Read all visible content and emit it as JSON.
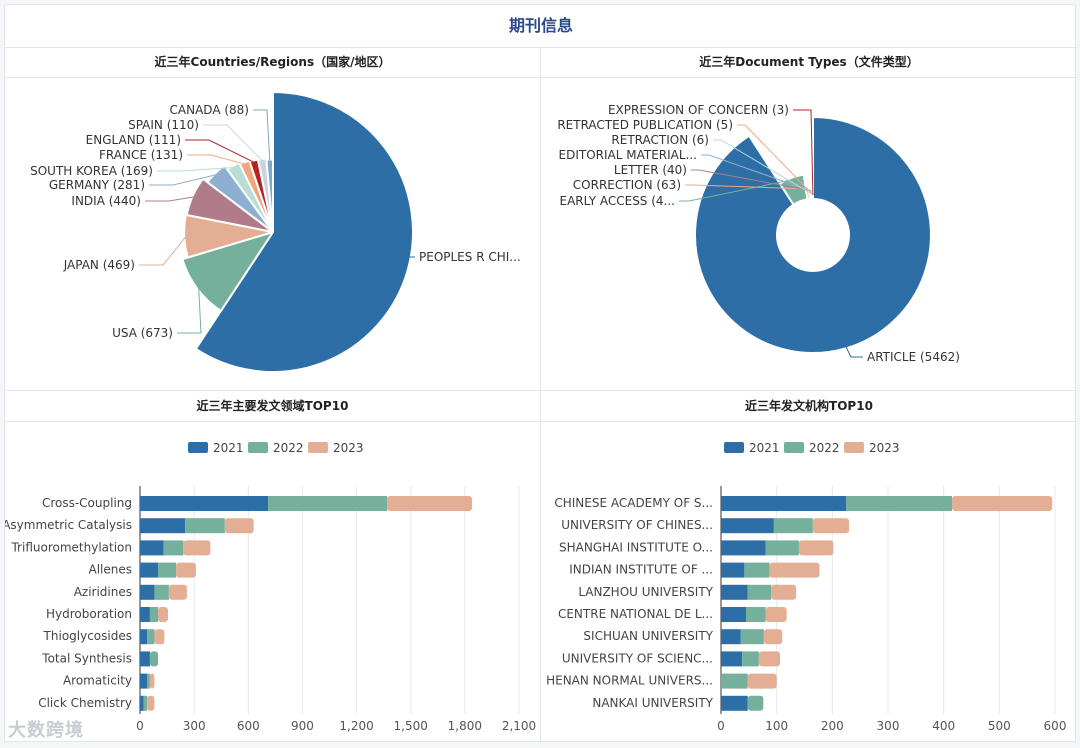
{
  "page_title": "期刊信息",
  "watermark": "大数跨境",
  "panels": {
    "countries": {
      "title": "近三年Countries/Regions（国家/地区）"
    },
    "doctypes": {
      "title": "近三年Document Types（文件类型）"
    },
    "fields": {
      "title": "近三年主要发文领域TOP10"
    },
    "institutions": {
      "title": "近三年发文机构TOP10"
    }
  },
  "chart_data": [
    {
      "type": "pie",
      "variant": "rose",
      "labels": [
        "PEOPLES R CHI...",
        "USA (673)",
        "JAPAN (469)",
        "INDIA (440)",
        "GERMANY (281)",
        "SOUTH KOREA (169)",
        "FRANCE (131)",
        "ENGLAND (111)",
        "SPAIN (110)",
        "CANADA (88)"
      ],
      "values": [
        3600,
        673,
        469,
        440,
        281,
        169,
        131,
        111,
        110,
        88
      ],
      "colors": [
        "#2e6ea6",
        "#75b09c",
        "#e3ae94",
        "#b07c8c",
        "#8eafcf",
        "#b7ddd4",
        "#f0a77f",
        "#b22324",
        "#c9d4df",
        "#7fa9c4"
      ]
    },
    {
      "type": "pie",
      "variant": "rose-donut",
      "labels": [
        "ARTICLE (5462)",
        "EARLY ACCESS (4...",
        "CORRECTION (63)",
        "LETTER (40)",
        "EDITORIAL MATERIAL...",
        "RETRACTION (6)",
        "RETRACTED PUBLICATION (5)",
        "EXPRESSION OF CONCERN (3)"
      ],
      "values": [
        5462,
        400,
        63,
        40,
        30,
        6,
        5,
        3
      ],
      "colors": [
        "#2e6ea6",
        "#75b09c",
        "#e3ae94",
        "#b07c8c",
        "#8eafcf",
        "#b7ddd4",
        "#f0a77f",
        "#b22324"
      ]
    },
    {
      "type": "bar",
      "orientation": "horizontal",
      "stacked": true,
      "categories": [
        "Cross-Coupling",
        "Asymmetric Catalysis",
        "Trifluoromethylation",
        "Allenes",
        "Aziridines",
        "Hydroboration",
        "Thioglycosides",
        "Total Synthesis",
        "Aromaticity",
        "Click Chemistry"
      ],
      "series": [
        {
          "name": "2021",
          "color": "#2e6ea6",
          "values": [
            710,
            250,
            130,
            100,
            80,
            55,
            40,
            55,
            40,
            20
          ]
        },
        {
          "name": "2022",
          "color": "#75b09c",
          "values": [
            660,
            220,
            110,
            100,
            80,
            45,
            40,
            45,
            15,
            20
          ]
        },
        {
          "name": "2023",
          "color": "#e3ae94",
          "values": [
            470,
            160,
            150,
            110,
            100,
            55,
            55,
            0,
            25,
            40
          ]
        }
      ],
      "xlim": [
        0,
        2100
      ],
      "xticks": [
        "0",
        "300",
        "600",
        "900",
        "1,200",
        "1,500",
        "1,800",
        "2,100"
      ],
      "legend": "top"
    },
    {
      "type": "bar",
      "orientation": "horizontal",
      "stacked": true,
      "categories": [
        "CHINESE ACADEMY OF S...",
        "UNIVERSITY OF CHINES...",
        "SHANGHAI INSTITUTE O...",
        "INDIAN INSTITUTE OF ...",
        "LANZHOU UNIVERSITY",
        "CENTRE NATIONAL DE L...",
        "SICHUAN UNIVERSITY",
        "UNIVERSITY OF SCIENC...",
        "HENAN NORMAL UNIVERS...",
        "NANKAI UNIVERSITY"
      ],
      "series": [
        {
          "name": "2021",
          "color": "#2e6ea6",
          "values": [
            225,
            95,
            80,
            42,
            48,
            45,
            35,
            38,
            0,
            48
          ]
        },
        {
          "name": "2022",
          "color": "#75b09c",
          "values": [
            190,
            70,
            60,
            45,
            42,
            35,
            42,
            30,
            48,
            28
          ]
        },
        {
          "name": "2023",
          "color": "#e3ae94",
          "values": [
            180,
            65,
            62,
            90,
            45,
            38,
            33,
            38,
            52,
            0
          ]
        }
      ],
      "xlim": [
        0,
        600
      ],
      "xticks": [
        "0",
        "100",
        "200",
        "300",
        "400",
        "500",
        "600"
      ],
      "legend": "top"
    }
  ]
}
